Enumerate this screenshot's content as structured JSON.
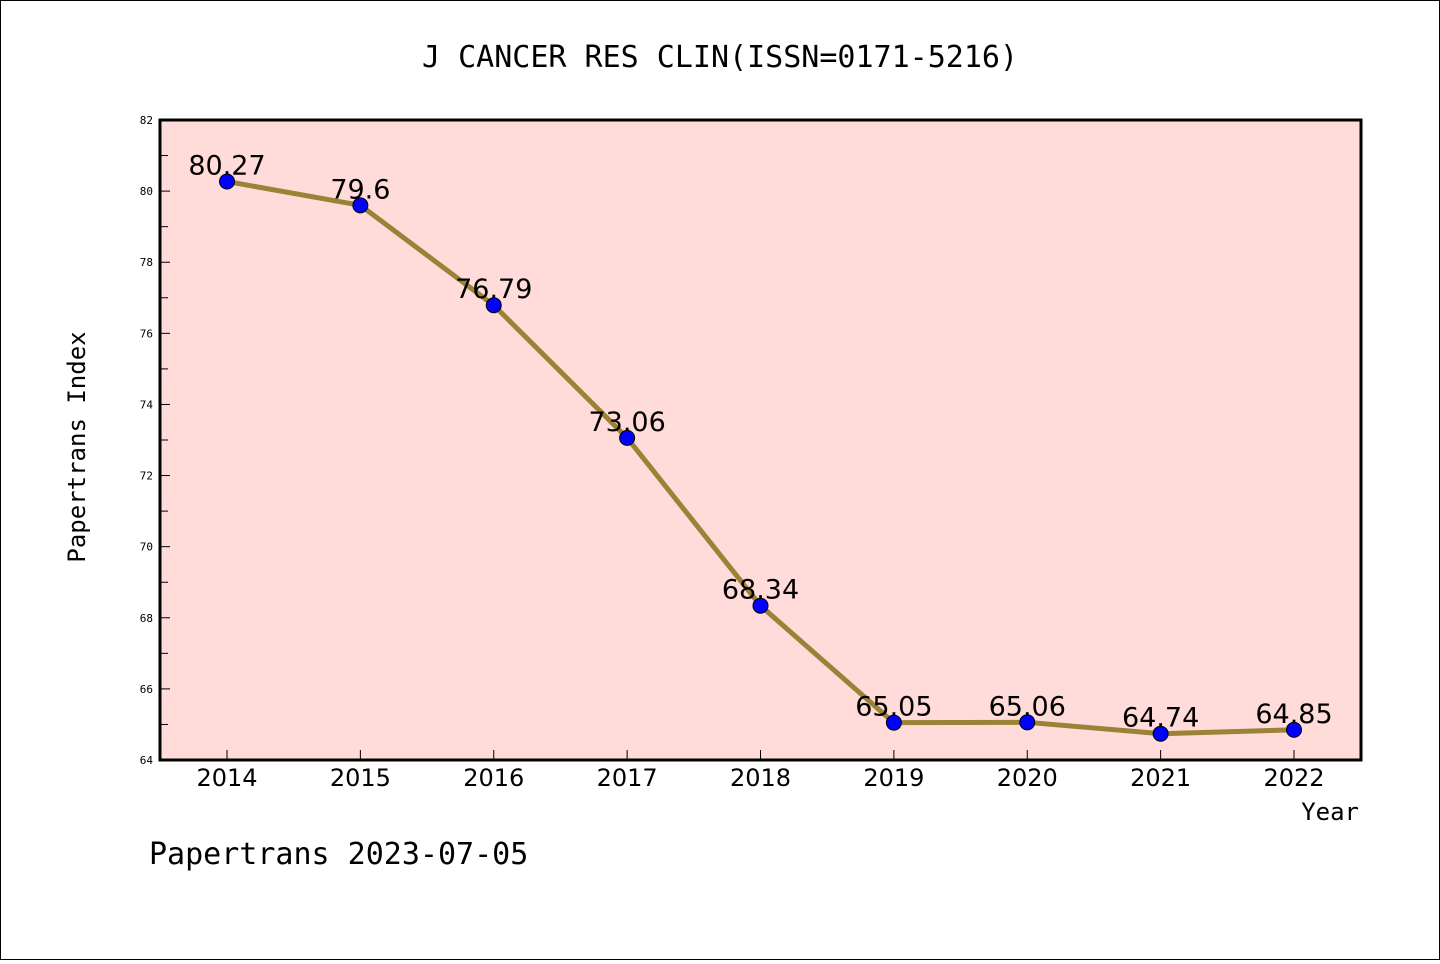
{
  "chart_data": {
    "type": "line",
    "title": "J CANCER RES CLIN(ISSN=0171-5216)",
    "xlabel": "Year",
    "ylabel": "Papertrans Index",
    "categories": [
      "2014",
      "2015",
      "2016",
      "2017",
      "2018",
      "2019",
      "2020",
      "2021",
      "2022"
    ],
    "series": [
      {
        "values": [
          80.27,
          79.6,
          76.79,
          73.06,
          68.34,
          65.05,
          65.06,
          64.74,
          64.85
        ]
      }
    ],
    "data_labels": [
      "80.27",
      "79.6",
      "76.79",
      "73.06",
      "68.34",
      "65.05",
      "65.06",
      "64.74",
      "64.85"
    ],
    "ylim": [
      64,
      82
    ],
    "y_ticks": [
      "64",
      "66",
      "68",
      "70",
      "72",
      "74",
      "76",
      "78",
      "80",
      "82"
    ],
    "grid": false,
    "footer": "Papertrans 2023-07-05",
    "colors": {
      "plot_background": "#ffdcd9",
      "line": "#9a8237",
      "marker": "#0000ff",
      "axis": "#000000"
    }
  }
}
